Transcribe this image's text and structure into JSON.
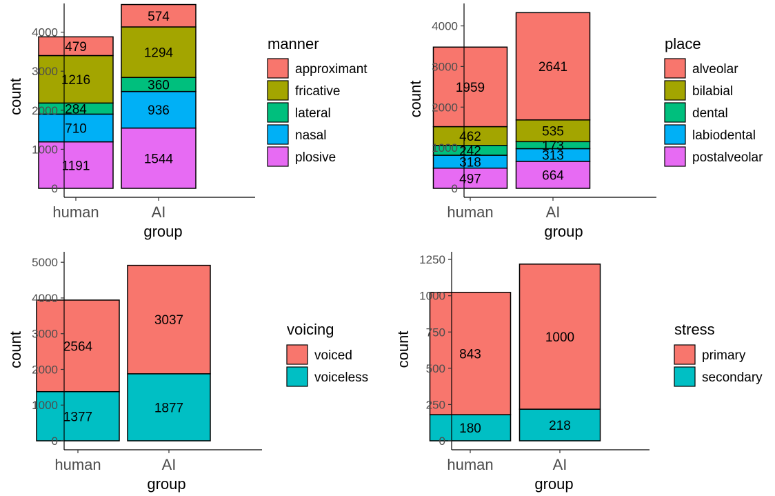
{
  "chart_data": [
    {
      "type": "bar",
      "stacked": true,
      "categories": [
        "human",
        "AI"
      ],
      "xlabel": "group",
      "ylabel": "count",
      "ylim": [
        0,
        4700
      ],
      "yticks": [
        0,
        1000,
        2000,
        3000,
        4000
      ],
      "legend": {
        "title": "manner",
        "position": "right"
      },
      "series": [
        {
          "name": "approximant",
          "color": "#F8766D",
          "values": [
            479,
            574
          ]
        },
        {
          "name": "fricative",
          "color": "#A3A500",
          "values": [
            1216,
            1294
          ]
        },
        {
          "name": "lateral",
          "color": "#00BF7D",
          "values": [
            284,
            360
          ]
        },
        {
          "name": "nasal",
          "color": "#00B0F6",
          "values": [
            710,
            936
          ]
        },
        {
          "name": "plosive",
          "color": "#E76BF3",
          "values": [
            1191,
            1544
          ]
        }
      ]
    },
    {
      "type": "bar",
      "stacked": true,
      "categories": [
        "human",
        "AI"
      ],
      "xlabel": "group",
      "ylabel": "count",
      "ylim": [
        0,
        4400
      ],
      "yticks": [
        0,
        1000,
        2000,
        3000,
        4000
      ],
      "legend": {
        "title": "place",
        "position": "right"
      },
      "series": [
        {
          "name": "alveolar",
          "color": "#F8766D",
          "values": [
            1959,
            2641
          ]
        },
        {
          "name": "bilabial",
          "color": "#A3A500",
          "values": [
            462,
            535
          ]
        },
        {
          "name": "dental",
          "color": "#00BF7D",
          "values": [
            242,
            173
          ]
        },
        {
          "name": "labiodental",
          "color": "#00B0F6",
          "values": [
            318,
            313
          ]
        },
        {
          "name": "postalveolar",
          "color": "#E76BF3",
          "values": [
            497,
            664
          ]
        }
      ]
    },
    {
      "type": "bar",
      "stacked": true,
      "categories": [
        "human",
        "AI"
      ],
      "xlabel": "group",
      "ylabel": "count",
      "ylim": [
        0,
        5100
      ],
      "yticks": [
        0,
        1000,
        2000,
        3000,
        4000,
        5000
      ],
      "legend": {
        "title": "voicing",
        "position": "right"
      },
      "series": [
        {
          "name": "voiced",
          "color": "#F8766D",
          "values": [
            2564,
            3037
          ]
        },
        {
          "name": "voiceless",
          "color": "#00BFC4",
          "values": [
            1377,
            1877
          ]
        }
      ]
    },
    {
      "type": "bar",
      "stacked": true,
      "categories": [
        "human",
        "AI"
      ],
      "xlabel": "group",
      "ylabel": "count",
      "ylim": [
        0,
        1260
      ],
      "yticks": [
        0,
        250,
        500,
        750,
        1000,
        1250
      ],
      "legend": {
        "title": "stress",
        "position": "right"
      },
      "series": [
        {
          "name": "primary",
          "color": "#F8766D",
          "values": [
            843,
            1000
          ]
        },
        {
          "name": "secondary",
          "color": "#00BFC4",
          "values": [
            180,
            218
          ]
        }
      ]
    }
  ]
}
